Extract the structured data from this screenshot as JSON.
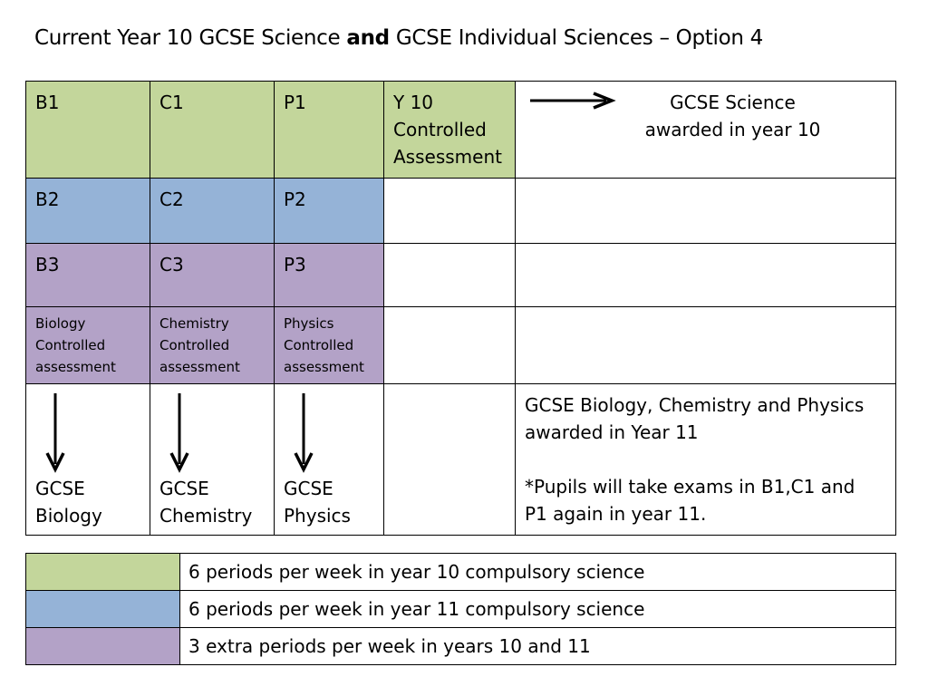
{
  "title": {
    "part1": "Current Year 10   GCSE Science ",
    "bold": "and",
    "part2": " GCSE Individual Sciences – Option 4"
  },
  "table": {
    "row1": {
      "b": "B1",
      "c": "C1",
      "p": "P1",
      "assessment": [
        "Y 10",
        "Controlled",
        "Assessment"
      ],
      "result": [
        "GCSE Science",
        "awarded in year 10"
      ]
    },
    "row2": {
      "b": "B2",
      "c": "C2",
      "p": "P2"
    },
    "row3": {
      "b": "B3",
      "c": "C3",
      "p": "P3"
    },
    "row4": {
      "b": [
        "Biology",
        "Controlled",
        "assessment"
      ],
      "c": [
        "Chemistry",
        "Controlled",
        "assessment"
      ],
      "p": [
        "Physics",
        "Controlled",
        "assessment"
      ]
    },
    "row5": {
      "b": [
        "GCSE",
        "Biology"
      ],
      "c": [
        "GCSE",
        "Chemistry"
      ],
      "p": [
        "GCSE",
        "Physics"
      ],
      "result1": [
        "GCSE Biology, Chemistry and Physics",
        "awarded in Year 11"
      ],
      "result2": [
        "*Pupils will take exams in B1,C1 and",
        "P1 again in year 11."
      ]
    }
  },
  "legend": [
    {
      "color": "#c3d69b",
      "label": "6 periods per week in year 10 compulsory science"
    },
    {
      "color": "#95b3d7",
      "label": "6 periods per week in year 11 compulsory science"
    },
    {
      "color": "#b3a2c7",
      "label": "3 extra periods per week in years 10 and 11"
    }
  ],
  "colors": {
    "green": "#c3d69b",
    "blue": "#95b3d7",
    "purple": "#b3a2c7"
  },
  "icons": {
    "right": "arrow-right-icon",
    "down": "arrow-down-icon"
  }
}
